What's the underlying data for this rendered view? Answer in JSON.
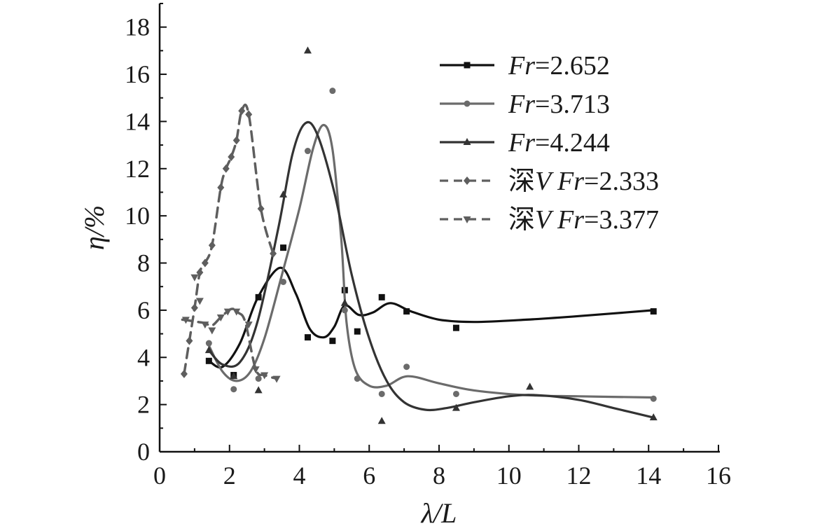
{
  "chart_data": {
    "type": "scatter",
    "title": "",
    "xlabel": "λ/L",
    "ylabel": "η/%",
    "xlim": [
      0,
      16
    ],
    "ylim": [
      0,
      19
    ],
    "xticks": [
      0,
      2,
      4,
      6,
      8,
      10,
      12,
      14,
      16
    ],
    "yticks": [
      0,
      2,
      4,
      6,
      8,
      10,
      12,
      14,
      16,
      18
    ],
    "grid": false,
    "legend_position": "top-right",
    "series": [
      {
        "name_prefix": "",
        "name_var": "Fr",
        "name_value": "=2.652",
        "marker": "square",
        "line": "solid",
        "color": "#111111",
        "points": [
          [
            1.41,
            3.85
          ],
          [
            2.12,
            3.25
          ],
          [
            2.83,
            6.55
          ],
          [
            3.54,
            8.65
          ],
          [
            4.24,
            4.85
          ],
          [
            4.95,
            4.7
          ],
          [
            5.3,
            6.85
          ],
          [
            5.66,
            5.1
          ],
          [
            6.36,
            6.55
          ],
          [
            7.07,
            5.95
          ],
          [
            8.49,
            5.25
          ],
          [
            14.14,
            5.95
          ]
        ],
        "curve": [
          [
            1.41,
            3.85
          ],
          [
            1.8,
            3.6
          ],
          [
            2.3,
            4.6
          ],
          [
            2.8,
            6.5
          ],
          [
            3.45,
            7.8
          ],
          [
            3.9,
            6.7
          ],
          [
            4.3,
            5.2
          ],
          [
            4.7,
            4.85
          ],
          [
            5.0,
            5.3
          ],
          [
            5.3,
            6.2
          ],
          [
            5.7,
            5.8
          ],
          [
            6.1,
            5.9
          ],
          [
            6.6,
            6.3
          ],
          [
            7.2,
            5.95
          ],
          [
            8.0,
            5.6
          ],
          [
            9.0,
            5.5
          ],
          [
            10.5,
            5.6
          ],
          [
            12.0,
            5.75
          ],
          [
            14.14,
            6.0
          ]
        ]
      },
      {
        "name_prefix": "",
        "name_var": "Fr",
        "name_value": "=3.713",
        "marker": "circle",
        "line": "solid",
        "color": "#6b6b6b",
        "points": [
          [
            1.41,
            4.6
          ],
          [
            2.12,
            2.65
          ],
          [
            2.83,
            3.1
          ],
          [
            3.54,
            7.2
          ],
          [
            4.24,
            12.75
          ],
          [
            4.95,
            15.3
          ],
          [
            5.3,
            6.0
          ],
          [
            5.66,
            3.1
          ],
          [
            6.36,
            2.45
          ],
          [
            7.07,
            3.6
          ],
          [
            8.49,
            2.45
          ],
          [
            14.14,
            2.25
          ]
        ],
        "curve": [
          [
            1.41,
            4.5
          ],
          [
            1.8,
            3.4
          ],
          [
            2.2,
            3.0
          ],
          [
            2.6,
            3.4
          ],
          [
            3.0,
            4.8
          ],
          [
            3.5,
            7.5
          ],
          [
            4.0,
            10.3
          ],
          [
            4.4,
            12.9
          ],
          [
            4.7,
            13.85
          ],
          [
            4.95,
            12.8
          ],
          [
            5.2,
            9.0
          ],
          [
            5.35,
            5.5
          ],
          [
            5.6,
            3.5
          ],
          [
            6.0,
            2.8
          ],
          [
            6.5,
            2.8
          ],
          [
            7.1,
            3.2
          ],
          [
            8.0,
            2.9
          ],
          [
            9.0,
            2.6
          ],
          [
            10.5,
            2.4
          ],
          [
            12.0,
            2.35
          ],
          [
            14.14,
            2.3
          ]
        ]
      },
      {
        "name_prefix": "",
        "name_var": "Fr",
        "name_value": "=4.244",
        "marker": "triangle-up",
        "line": "solid",
        "color": "#333333",
        "points": [
          [
            1.41,
            4.3
          ],
          [
            2.12,
            3.2
          ],
          [
            2.83,
            2.6
          ],
          [
            3.54,
            10.9
          ],
          [
            4.24,
            17.0
          ],
          [
            5.3,
            6.3
          ],
          [
            6.36,
            1.3
          ],
          [
            8.49,
            1.85
          ],
          [
            10.6,
            2.75
          ],
          [
            14.14,
            1.45
          ]
        ],
        "curve": [
          [
            1.41,
            4.3
          ],
          [
            1.8,
            3.7
          ],
          [
            2.3,
            3.8
          ],
          [
            2.8,
            5.5
          ],
          [
            3.4,
            9.5
          ],
          [
            3.8,
            12.6
          ],
          [
            4.15,
            13.9
          ],
          [
            4.5,
            13.5
          ],
          [
            5.0,
            11.0
          ],
          [
            5.5,
            7.5
          ],
          [
            6.0,
            4.8
          ],
          [
            6.5,
            3.0
          ],
          [
            7.0,
            2.1
          ],
          [
            7.6,
            1.78
          ],
          [
            8.2,
            1.85
          ],
          [
            9.0,
            2.1
          ],
          [
            10.0,
            2.35
          ],
          [
            10.8,
            2.4
          ],
          [
            12.0,
            2.2
          ],
          [
            13.0,
            1.85
          ],
          [
            14.14,
            1.45
          ]
        ]
      },
      {
        "name_prefix": "深",
        "name_var": "V Fr",
        "name_value": "=2.333",
        "marker": "diamond",
        "line": "dashed",
        "color": "#5e5e5e",
        "points": [
          [
            0.7,
            3.3
          ],
          [
            0.85,
            4.7
          ],
          [
            1.0,
            6.1
          ],
          [
            1.15,
            7.6
          ],
          [
            1.3,
            8.0
          ],
          [
            1.5,
            8.75
          ],
          [
            1.75,
            11.2
          ],
          [
            1.9,
            12.0
          ],
          [
            2.05,
            12.5
          ],
          [
            2.2,
            13.2
          ],
          [
            2.35,
            14.45
          ],
          [
            2.55,
            14.3
          ],
          [
            2.9,
            10.3
          ],
          [
            3.25,
            8.4
          ]
        ],
        "curve": [
          [
            0.7,
            3.3
          ],
          [
            0.85,
            4.7
          ],
          [
            1.0,
            6.1
          ],
          [
            1.15,
            7.6
          ],
          [
            1.3,
            8.0
          ],
          [
            1.5,
            8.75
          ],
          [
            1.75,
            11.2
          ],
          [
            1.9,
            12.0
          ],
          [
            2.05,
            12.5
          ],
          [
            2.2,
            13.2
          ],
          [
            2.35,
            14.45
          ],
          [
            2.55,
            14.3
          ],
          [
            2.9,
            10.3
          ],
          [
            3.25,
            8.4
          ]
        ]
      },
      {
        "name_prefix": "深",
        "name_var": "V Fr",
        "name_value": "=3.377",
        "marker": "triangle-down",
        "line": "dashed",
        "color": "#5e5e5e",
        "points": [
          [
            0.75,
            5.6
          ],
          [
            1.0,
            7.4
          ],
          [
            1.15,
            6.4
          ],
          [
            1.3,
            5.4
          ],
          [
            1.5,
            5.15
          ],
          [
            1.75,
            5.7
          ],
          [
            1.95,
            5.95
          ],
          [
            2.2,
            5.95
          ],
          [
            2.55,
            5.4
          ],
          [
            2.75,
            3.5
          ],
          [
            3.0,
            3.25
          ],
          [
            3.35,
            3.1
          ]
        ],
        "curve": [
          [
            0.65,
            5.6
          ],
          [
            0.9,
            5.55
          ],
          [
            1.1,
            5.5
          ],
          [
            1.3,
            5.45
          ],
          [
            1.5,
            5.35
          ],
          [
            1.75,
            5.7
          ],
          [
            2.05,
            6.05
          ],
          [
            2.25,
            5.9
          ],
          [
            2.45,
            5.5
          ],
          [
            2.75,
            3.5
          ],
          [
            3.0,
            3.25
          ],
          [
            3.35,
            3.1
          ]
        ]
      }
    ]
  }
}
